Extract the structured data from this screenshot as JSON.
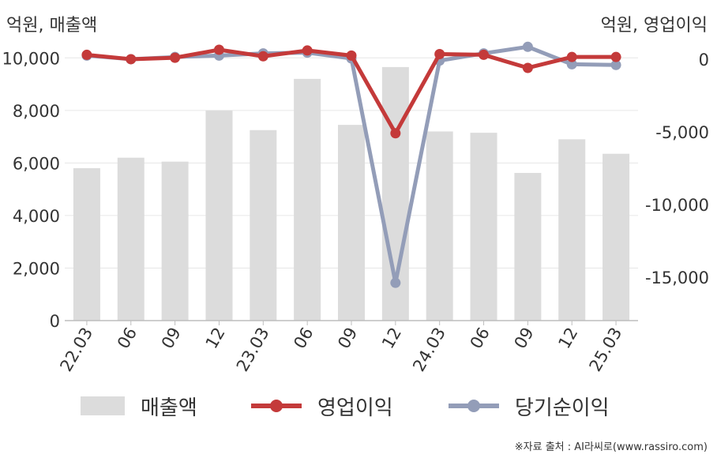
{
  "chart_data": {
    "type": "bar",
    "title": "",
    "categories": [
      "22.03",
      "06",
      "09",
      "12",
      "23.03",
      "06",
      "09",
      "12",
      "24.03",
      "06",
      "09",
      "12",
      "25.03"
    ],
    "left_axis": {
      "label": "억원, 매출액",
      "ylim": [
        0,
        11000
      ],
      "ticks": [
        0,
        2000,
        4000,
        6000,
        8000,
        10000
      ],
      "tick_labels": [
        "0",
        "2,000",
        "4,000",
        "6,000",
        "8,000",
        "10,000"
      ]
    },
    "right_axis": {
      "label": "억원, 영업이익",
      "ylim": [
        -18000,
        1900
      ],
      "ticks": [
        0,
        -5000,
        -10000,
        -15000
      ],
      "tick_labels": [
        "0",
        "-5,000",
        "-10,000",
        "-15,000"
      ]
    },
    "series": [
      {
        "name": "매출액",
        "type": "bar",
        "axis": "left",
        "color": "#dcdcdc",
        "values": [
          5800,
          6200,
          6050,
          8000,
          7250,
          9200,
          7450,
          9650,
          7200,
          7150,
          5620,
          6900,
          6350
        ]
      },
      {
        "name": "영업이익",
        "type": "line",
        "axis": "right",
        "color": "#c43a3a",
        "values": [
          300,
          0,
          100,
          650,
          200,
          600,
          250,
          -5100,
          350,
          300,
          -600,
          150,
          150
        ]
      },
      {
        "name": "당기순이익",
        "type": "line",
        "axis": "right",
        "color": "#939db8",
        "values": [
          250,
          0,
          150,
          250,
          400,
          450,
          50,
          -15400,
          -100,
          400,
          850,
          -350,
          -400
        ]
      }
    ],
    "grid": true,
    "legend_position": "bottom"
  },
  "source": "※자료 출처 : AI라씨로(www.rassiro.com)"
}
